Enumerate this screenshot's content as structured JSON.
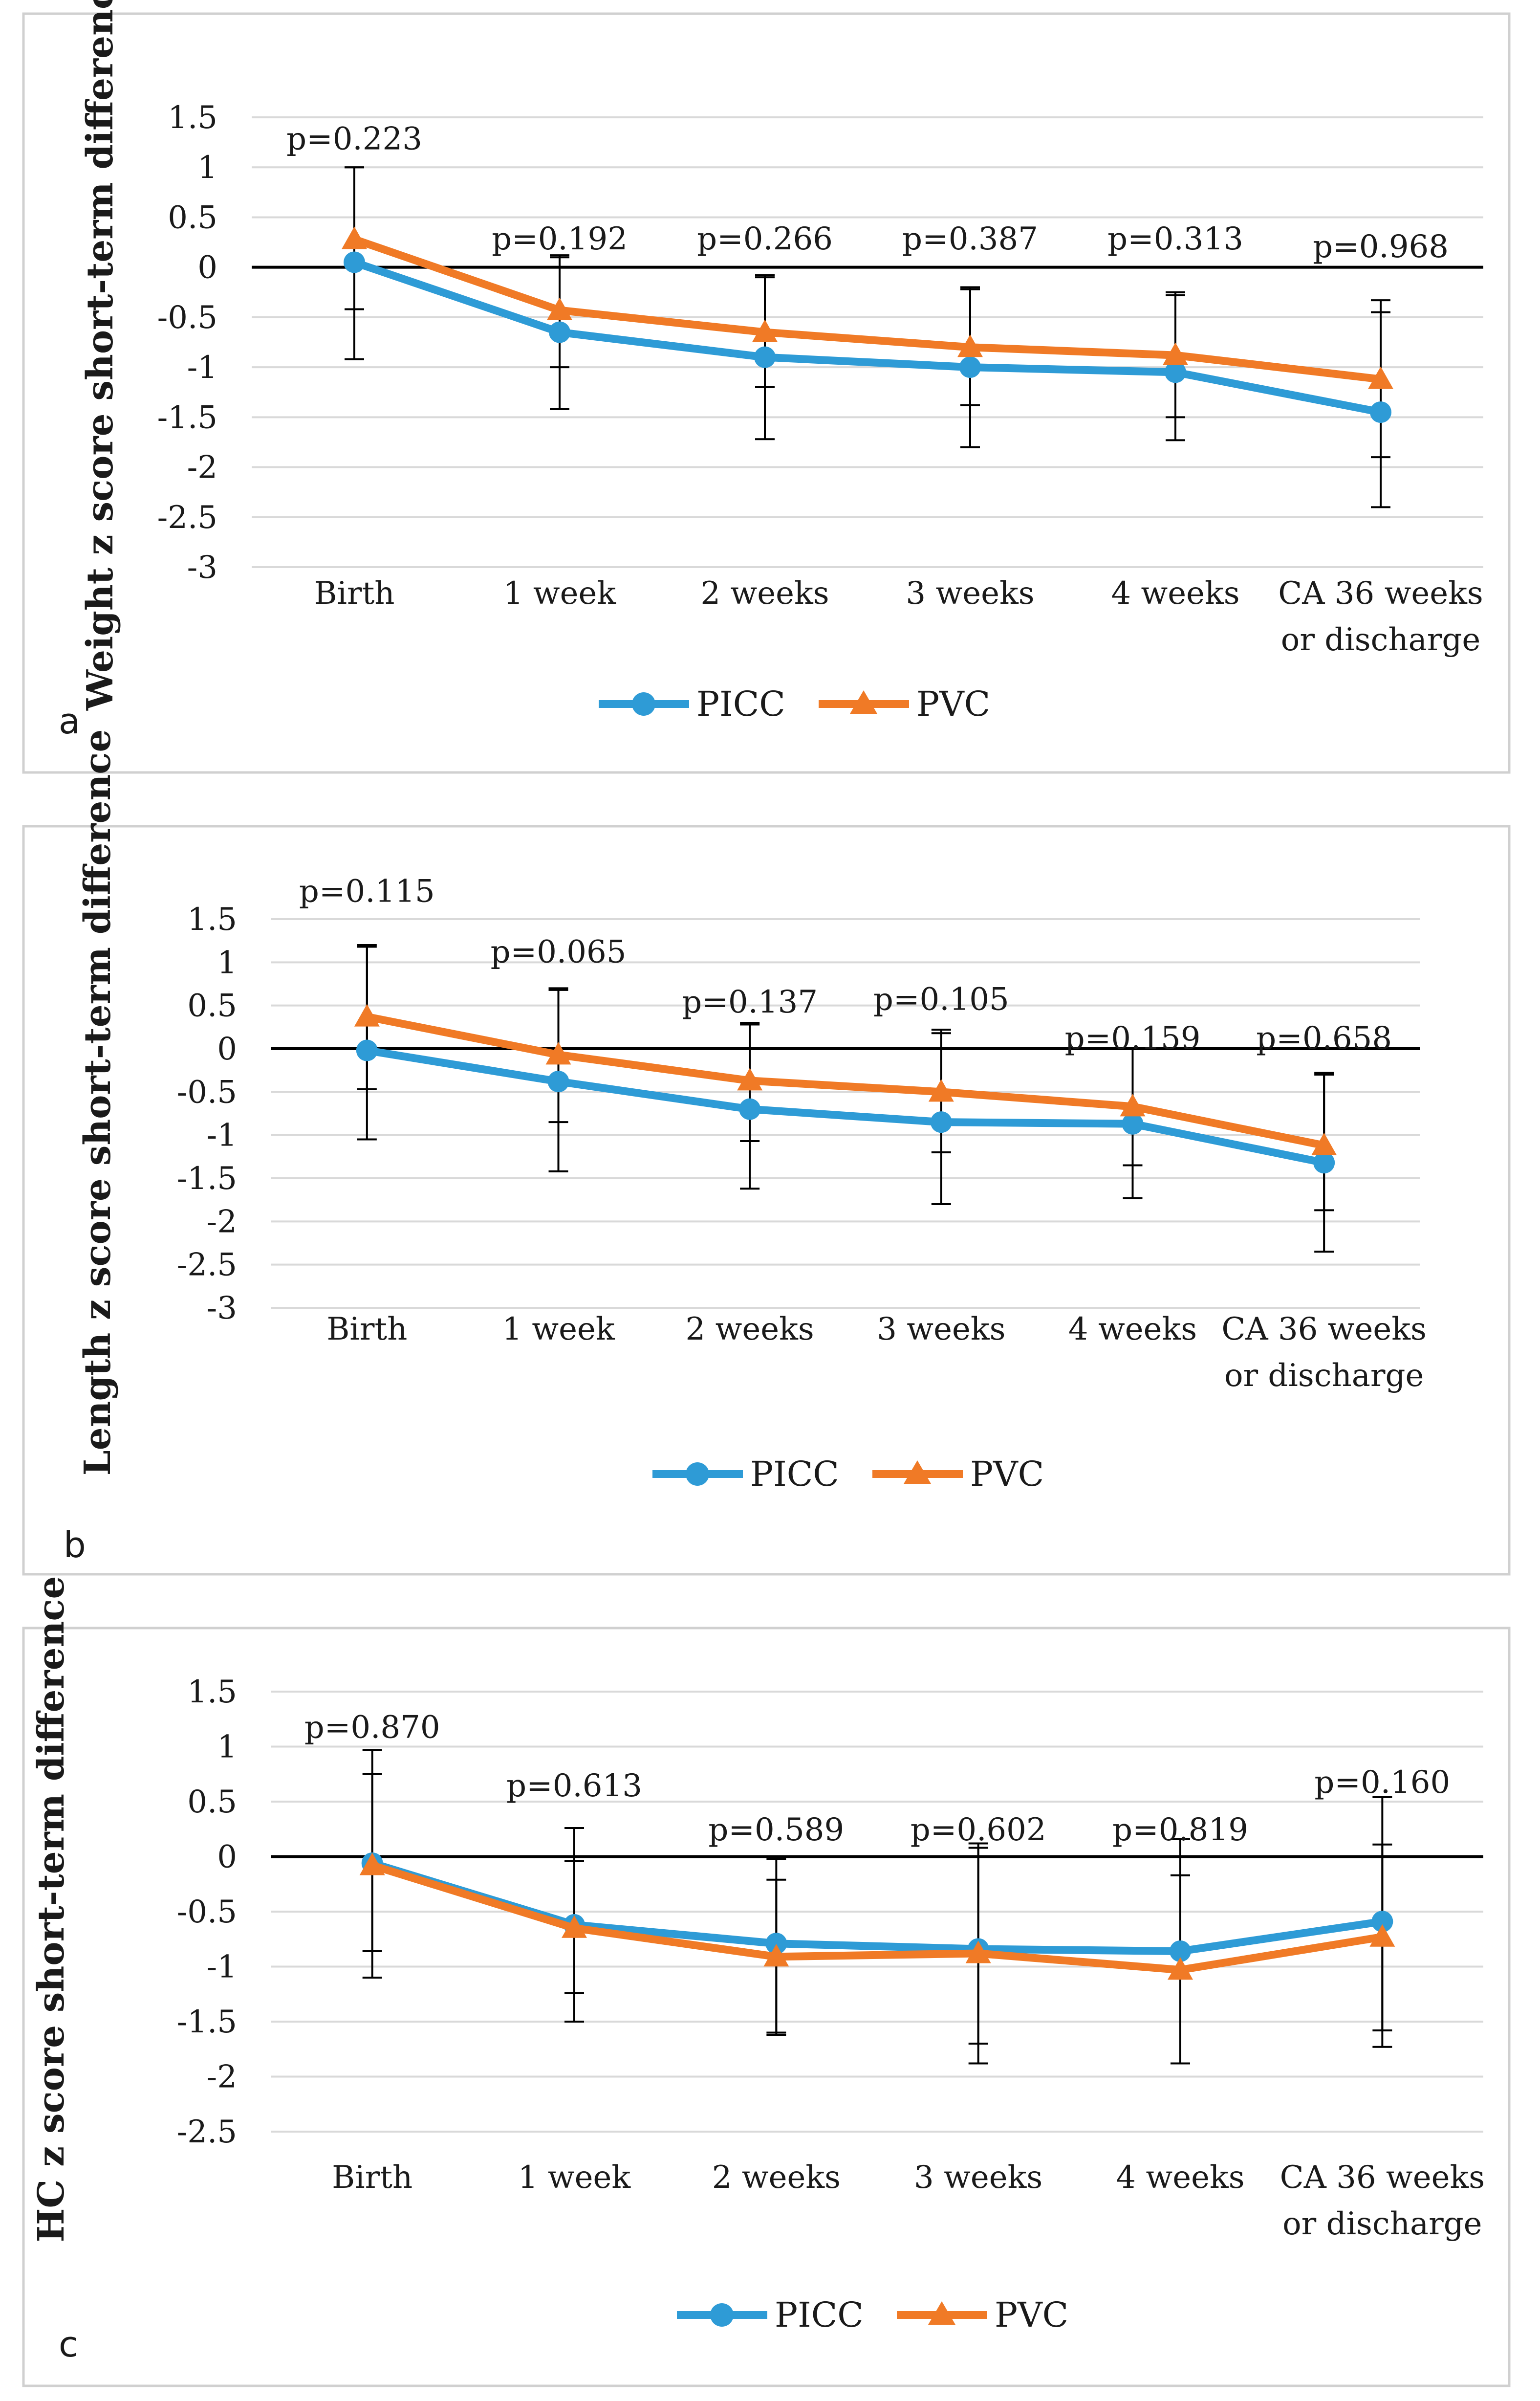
{
  "colors": {
    "picc": "#2E9BD6",
    "pvc": "#F07A26",
    "axis": "#000000",
    "grid": "#D9D9D9",
    "frame": "#D0D0D0",
    "text": "#1a1a1a"
  },
  "chart_data": [
    {
      "type": "line",
      "panel_label": "a",
      "ylabel": "Weight z score short-term difference",
      "ylim": [
        -3,
        1.5
      ],
      "yticks": [
        1.5,
        1,
        0.5,
        0,
        -0.5,
        -1,
        -1.5,
        -2,
        -2.5,
        -3
      ],
      "categories": [
        "Birth",
        "1 week",
        "2 weeks",
        "3 weeks",
        "4 weeks",
        "CA 36 weeks\nor discharge"
      ],
      "series": [
        {
          "name": "PICC",
          "marker": "circle",
          "values": [
            0.05,
            -0.65,
            -0.9,
            -1.0,
            -1.05,
            -1.45
          ],
          "err_low": [
            -0.92,
            -1.42,
            -1.72,
            -1.8,
            -1.73,
            -2.4
          ],
          "err_high": [
            1.0,
            0.1,
            -0.08,
            -0.2,
            -0.25,
            -0.45
          ]
        },
        {
          "name": "PVC",
          "marker": "triangle",
          "values": [
            0.28,
            -0.43,
            -0.65,
            -0.8,
            -0.88,
            -1.12
          ],
          "err_low": [
            -0.42,
            -1.0,
            -1.2,
            -1.38,
            -1.5,
            -1.9
          ],
          "err_high": [
            1.0,
            0.12,
            -0.1,
            -0.22,
            -0.28,
            -0.33
          ]
        }
      ],
      "p_values": [
        "p=0.223",
        "p=0.192",
        "p=0.266",
        "p=0.387",
        "p=0.313",
        "p=0.968"
      ],
      "p_y": [
        1.18,
        0.18,
        0.18,
        0.18,
        0.18,
        0.1
      ],
      "legend": [
        "PICC",
        "PVC"
      ]
    },
    {
      "type": "line",
      "panel_label": "b",
      "ylabel": "Length z score short-term difference",
      "ylim": [
        -3,
        1.5
      ],
      "yticks": [
        1.5,
        1,
        0.5,
        0,
        -0.5,
        -1,
        -1.5,
        -2,
        -2.5,
        -3
      ],
      "categories": [
        "Birth",
        "1 week",
        "2 weeks",
        "3 weeks",
        "4 weeks",
        "CA 36 weeks\nor discharge"
      ],
      "series": [
        {
          "name": "PICC",
          "marker": "circle",
          "values": [
            -0.02,
            -0.38,
            -0.7,
            -0.85,
            -0.87,
            -1.32
          ],
          "err_low": [
            -1.05,
            -1.42,
            -1.62,
            -1.8,
            -1.73,
            -2.35
          ],
          "err_high": [
            1.18,
            0.68,
            0.28,
            0.18,
            0.0,
            -0.28
          ]
        },
        {
          "name": "PVC",
          "marker": "triangle",
          "values": [
            0.37,
            -0.07,
            -0.37,
            -0.5,
            -0.67,
            -1.12
          ],
          "err_low": [
            -0.47,
            -0.85,
            -1.07,
            -1.2,
            -1.35,
            -1.87
          ],
          "err_high": [
            1.2,
            0.7,
            0.3,
            0.22,
            0.0,
            -0.3
          ]
        }
      ],
      "p_values": [
        "p=0.115",
        "p=0.065",
        "p=0.137",
        "p=0.105",
        "p=0.159",
        "p=0.658"
      ],
      "p_y": [
        1.7,
        1.0,
        0.42,
        0.45,
        0.0,
        0.0
      ],
      "legend": [
        "PICC",
        "PVC"
      ]
    },
    {
      "type": "line",
      "panel_label": "c",
      "ylabel": "HC z score short-term difference",
      "ylim": [
        -2.5,
        1.5
      ],
      "yticks": [
        1.5,
        1,
        0.5,
        0,
        -0.5,
        -1,
        -1.5,
        -2,
        -2.5
      ],
      "categories": [
        "Birth",
        "1 week",
        "2 weeks",
        "3 weeks",
        "4 weeks",
        "CA 36 weeks\nor discharge"
      ],
      "series": [
        {
          "name": "PICC",
          "marker": "circle",
          "values": [
            -0.06,
            -0.62,
            -0.79,
            -0.84,
            -0.86,
            -0.59
          ],
          "err_low": [
            -1.1,
            -1.5,
            -1.6,
            -1.88,
            -1.88,
            -1.58
          ],
          "err_high": [
            0.97,
            0.26,
            -0.02,
            0.12,
            0.16,
            0.54
          ]
        },
        {
          "name": "PVC",
          "marker": "triangle",
          "values": [
            -0.08,
            -0.65,
            -0.91,
            -0.88,
            -1.03,
            -0.73
          ],
          "err_low": [
            -0.86,
            -1.24,
            -1.62,
            -1.7,
            -1.88,
            -1.73
          ],
          "err_high": [
            0.75,
            -0.04,
            -0.21,
            0.08,
            -0.17,
            0.11
          ]
        }
      ],
      "p_values": [
        "p=0.870",
        "p=0.613",
        "p=0.589",
        "p=0.602",
        "p=0.819",
        "p=0.160"
      ],
      "p_y": [
        1.08,
        0.55,
        0.15,
        0.15,
        0.15,
        0.58
      ],
      "legend": [
        "PICC",
        "PVC"
      ]
    }
  ]
}
